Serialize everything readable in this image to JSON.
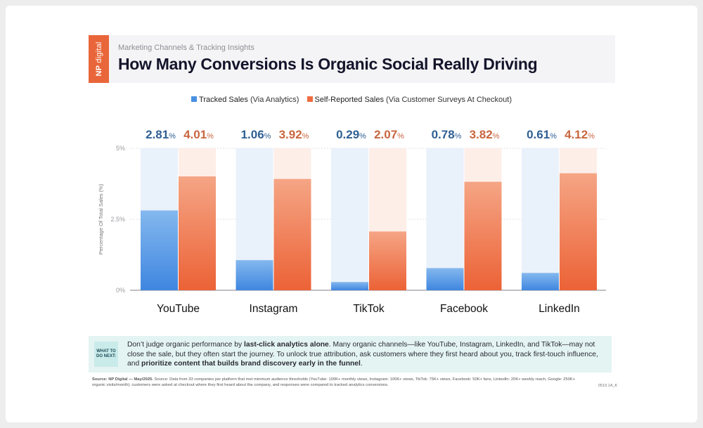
{
  "brand": {
    "np": "NP",
    "digital": "digital"
  },
  "header": {
    "subtitle": "Marketing Channels & Tracking Insights",
    "title": "How Many Conversions Is Organic Social Really Driving"
  },
  "legend": {
    "tracked_bold": "Tracked Sales",
    "tracked_rest": " (Via Analytics)",
    "self_bold": "Self-Reported Sales",
    "self_rest": " (Via Customer Surveys At Checkout)"
  },
  "colors": {
    "tracked": "#4a90e2",
    "self_reported": "#ef6c42",
    "tracked_track": "#e9f1fb",
    "self_track": "#fdeee8",
    "tracked_label": "#2f5f93",
    "self_label": "#c8663f"
  },
  "chart_data": {
    "type": "bar",
    "title": "How Many Conversions Is Organic Social Really Driving",
    "ylabel": "Percentage Of Total Sales (%)",
    "xlabel": "",
    "ylim": [
      0,
      5
    ],
    "yticks": [
      {
        "value": 0,
        "label": "0%"
      },
      {
        "value": 2.5,
        "label": "2.5%"
      },
      {
        "value": 5,
        "label": "5%"
      }
    ],
    "categories": [
      "YouTube",
      "Instagram",
      "TikTok",
      "Facebook",
      "LinkedIn"
    ],
    "series": [
      {
        "name": "Tracked Sales (Via Analytics)",
        "values": [
          2.81,
          1.06,
          0.29,
          0.78,
          0.61
        ],
        "labels": [
          "2.81",
          "1.06",
          "0.29",
          "0.78",
          "0.61"
        ]
      },
      {
        "name": "Self-Reported Sales (Via Customer Surveys At Checkout)",
        "values": [
          4.01,
          3.92,
          2.07,
          3.82,
          4.12
        ],
        "labels": [
          "4.01",
          "3.92",
          "2.07",
          "3.82",
          "4.12"
        ]
      }
    ],
    "unit": "%"
  },
  "callout": {
    "tag_line1": "WHAT TO",
    "tag_line2": "DO NEXT:",
    "p1": "Don’t judge organic performance by ",
    "b1": "last-click analytics alone",
    "p2": ". Many organic channels—like YouTube, Instagram, LinkedIn, and TikTok—may not close the sale, but they often start the journey. To unlock true attribution, ask customers where they first heard about you, track first-touch influence, and ",
    "b2": "prioritize content that builds brand discovery early in the funnel",
    "p3": "."
  },
  "source": {
    "label": "Source: NP Digital — May/2025.",
    "text": " Source: Data from 33 companies per platform that met minimum audience thresholds (YouTube: 100K+ monthly views, Instagram: 100K+ views, TikTok: 75K+ views, Facebook: 50K+ fans, LinkedIn: 20K+ weekly reach, Google: 250K+ organic visits/month); customers were asked at checkout where they first heard about the company, and responses were compared to tracked analytics conversions."
  },
  "code": "0519.1A_K"
}
